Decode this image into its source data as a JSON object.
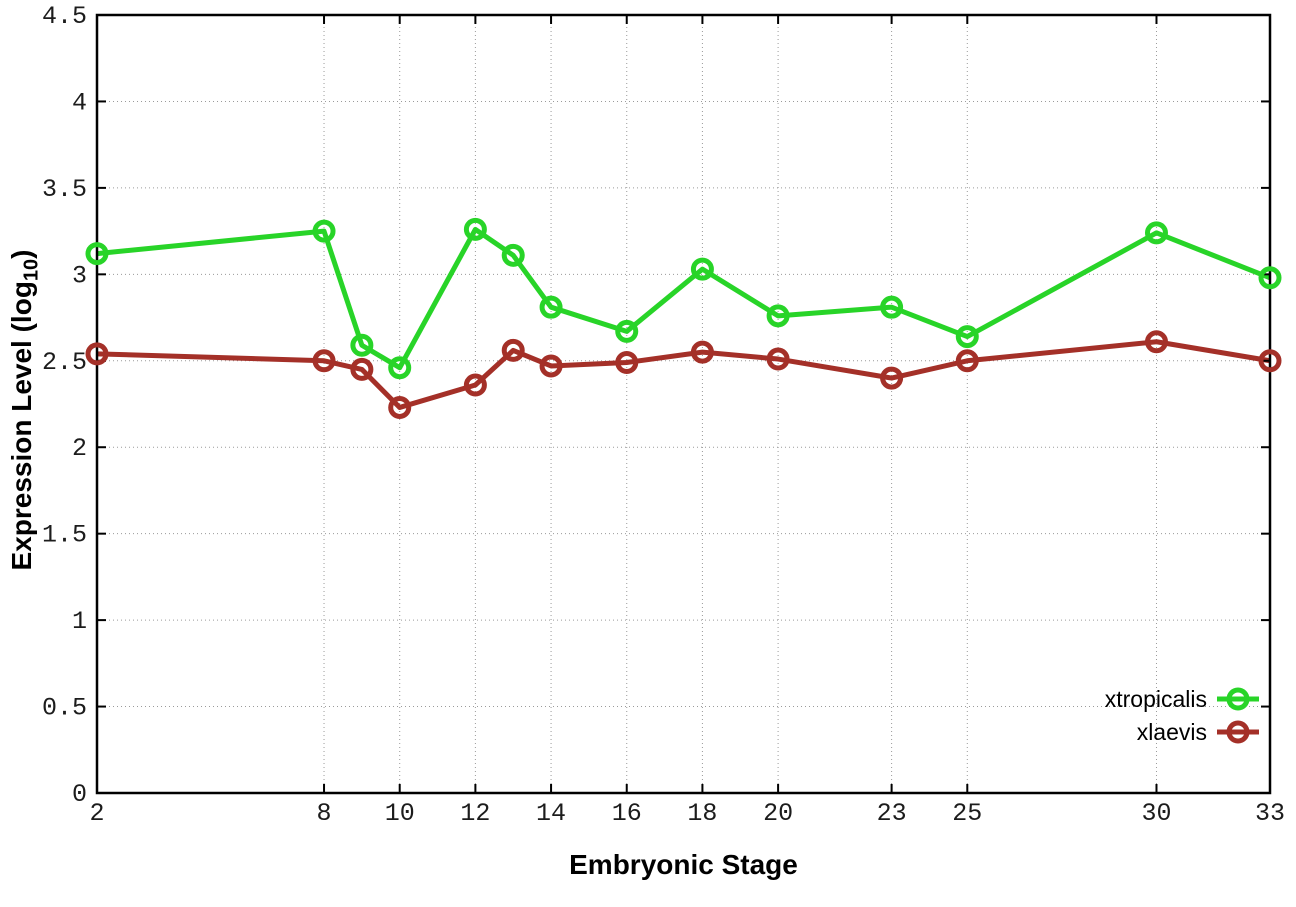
{
  "chart_data": {
    "type": "line",
    "title": "",
    "xlabel": "Embryonic Stage",
    "ylabel_parts": {
      "pre": "Expression Level (log",
      "sub": "10",
      "post": ")"
    },
    "xlim": [
      2,
      33
    ],
    "ylim": [
      0,
      4.5
    ],
    "grid": true,
    "grid_style": "dotted",
    "legend_position": "bottom-right-inside",
    "axis_color": "#000000",
    "grid_color": "#9a9a9a",
    "x": [
      2,
      8,
      9,
      10,
      12,
      13,
      14,
      16,
      18,
      20,
      23,
      25,
      30,
      33
    ],
    "xtick_values": [
      2,
      8,
      10,
      12,
      14,
      16,
      18,
      20,
      23,
      25,
      30,
      33
    ],
    "xtick_labels": [
      "2",
      "8",
      "10",
      "12",
      "14",
      "16",
      "18",
      "20",
      "23",
      "25",
      "30",
      "33"
    ],
    "ytick_values": [
      0,
      0.5,
      1,
      1.5,
      2,
      2.5,
      3,
      3.5,
      4,
      4.5
    ],
    "ytick_labels": [
      "0",
      "0.5",
      "1",
      "1.5",
      "2",
      "2.5",
      "3",
      "3.5",
      "4",
      "4.5"
    ],
    "series": [
      {
        "name": "xtropicalis",
        "color": "#28d428",
        "marker": "open-circle",
        "values": [
          3.12,
          3.25,
          2.59,
          2.46,
          3.26,
          3.11,
          2.81,
          2.67,
          3.03,
          2.76,
          2.81,
          2.64,
          3.24,
          2.98
        ]
      },
      {
        "name": "xlaevis",
        "color": "#a43028",
        "marker": "open-circle",
        "values": [
          2.54,
          2.5,
          2.45,
          2.23,
          2.36,
          2.56,
          2.47,
          2.49,
          2.55,
          2.51,
          2.4,
          2.5,
          2.61,
          2.5
        ]
      }
    ]
  }
}
